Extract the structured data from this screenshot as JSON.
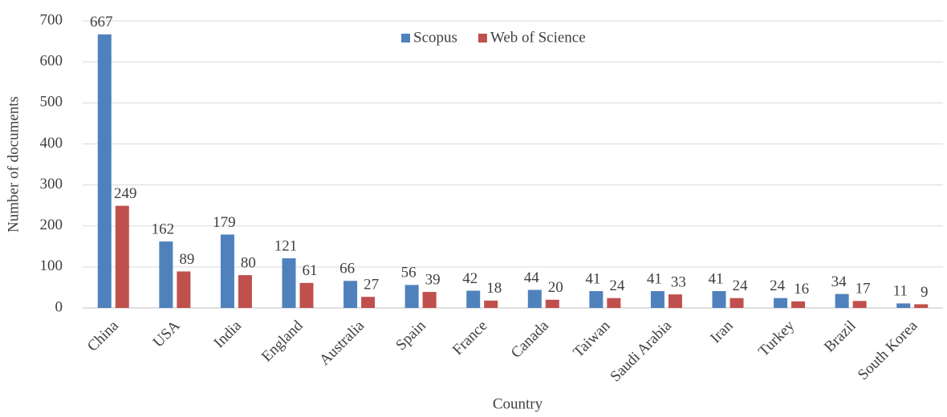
{
  "chart_data": {
    "type": "bar",
    "x_label": "Country",
    "y_label": "Number of documents",
    "categories": [
      "China",
      "USA",
      "India",
      "England",
      "Australia",
      "Spain",
      "France",
      "Canada",
      "Taiwan",
      "Saudi Arabia",
      "Iran",
      "Turkey",
      "Brazil",
      "South Korea"
    ],
    "series": [
      {
        "name": "Scopus",
        "color": "#4f81bd",
        "values": [
          667,
          162,
          179,
          121,
          66,
          56,
          42,
          44,
          41,
          41,
          41,
          24,
          34,
          11
        ]
      },
      {
        "name": "Web of Science",
        "color": "#c0504d",
        "values": [
          249,
          89,
          80,
          61,
          27,
          39,
          18,
          20,
          24,
          33,
          24,
          16,
          17,
          9
        ]
      }
    ],
    "ylim": [
      0,
      700
    ],
    "yticks": [
      0,
      100,
      200,
      300,
      400,
      500,
      600,
      700
    ],
    "grid": true,
    "legend": "top"
  }
}
